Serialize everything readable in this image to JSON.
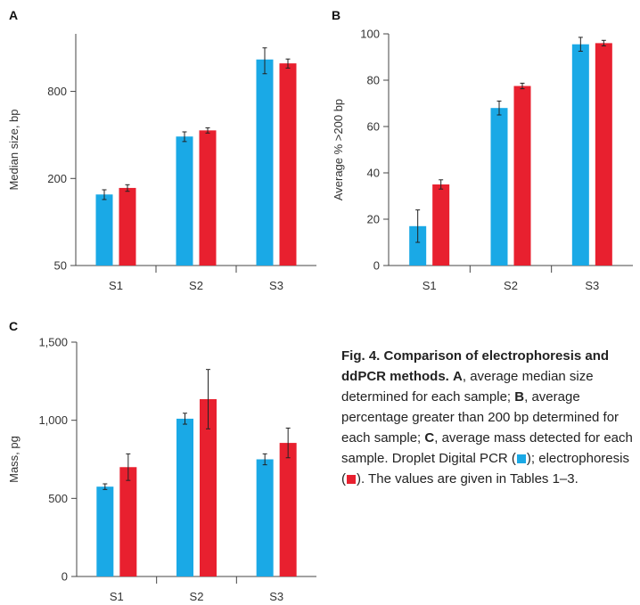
{
  "colors": {
    "ddpcr": "#1aa9e6",
    "electrophoresis": "#e8202f"
  },
  "chart_data": [
    {
      "panel": "A",
      "type": "bar",
      "ylabel": "Median size, bp",
      "xlabel": "",
      "y_scale": "log",
      "ylim": [
        50,
        2000
      ],
      "yticks": [
        50,
        200,
        800
      ],
      "ytick_labels": [
        "50",
        "200",
        "800"
      ],
      "categories": [
        "S1",
        "S2",
        "S3"
      ],
      "series": [
        {
          "color_key": "ddpcr",
          "values": [
            155,
            390,
            1330
          ],
          "errors": [
            12,
            30,
            270
          ]
        },
        {
          "color_key": "electrophoresis",
          "values": [
            172,
            430,
            1250
          ],
          "errors": [
            9,
            18,
            90
          ]
        }
      ]
    },
    {
      "panel": "B",
      "type": "bar",
      "ylabel": "Average % >200 bp",
      "xlabel": "",
      "ylim": [
        0,
        100
      ],
      "yticks": [
        0,
        20,
        40,
        60,
        80,
        100
      ],
      "ytick_labels": [
        "0",
        "20",
        "40",
        "60",
        "80",
        "100"
      ],
      "categories": [
        "S1",
        "S2",
        "S3"
      ],
      "series": [
        {
          "color_key": "ddpcr",
          "values": [
            17,
            68,
            95.5
          ],
          "errors": [
            7,
            3,
            3
          ]
        },
        {
          "color_key": "electrophoresis",
          "values": [
            35,
            77.5,
            96
          ],
          "errors": [
            2,
            1.2,
            1.2
          ]
        }
      ]
    },
    {
      "panel": "C",
      "type": "bar",
      "ylabel": "Mass, pg",
      "xlabel": "",
      "ylim": [
        0,
        1500
      ],
      "yticks": [
        0,
        500,
        1000,
        1500
      ],
      "ytick_labels": [
        "0",
        "500",
        "1,000",
        "1,500"
      ],
      "categories": [
        "S1",
        "S2",
        "S3"
      ],
      "series": [
        {
          "color_key": "ddpcr",
          "values": [
            575,
            1010,
            750
          ],
          "errors": [
            18,
            35,
            35
          ]
        },
        {
          "color_key": "electrophoresis",
          "values": [
            700,
            1135,
            855
          ],
          "errors": [
            85,
            190,
            95
          ]
        }
      ]
    }
  ],
  "caption": {
    "title": "Fig. 4. Comparison of electrophoresis and ddPCR methods.",
    "part_a_letter": "A",
    "part_a": ", average median size determined for each sample; ",
    "part_b_letter": "B",
    "part_b": ", average percentage greater than 200 bp determined for each sample; ",
    "part_c_letter": "C",
    "part_c": ", average mass detected for each sample. Droplet Digital PCR (",
    "mid": "); electrophoresis (",
    "end": "). The values are given in Tables 1–3."
  }
}
